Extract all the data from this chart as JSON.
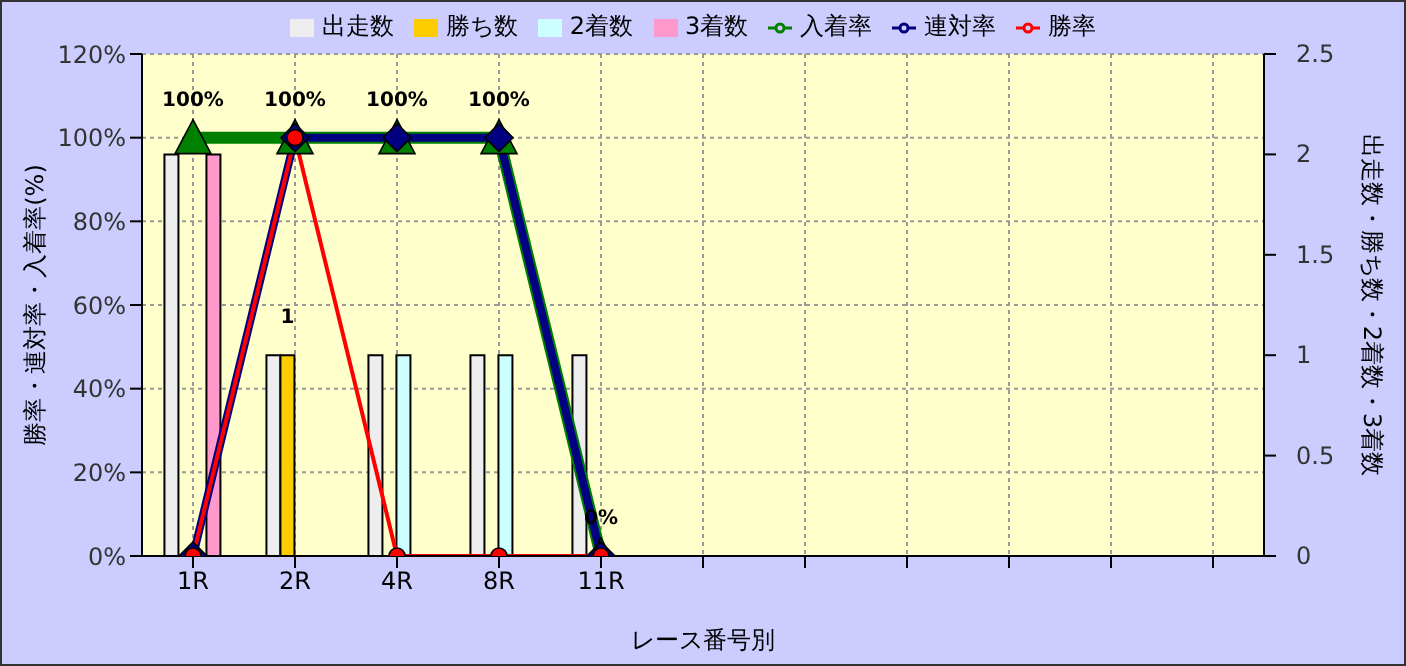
{
  "chart_data": {
    "type": "bar",
    "xlabel": "レース番号別",
    "ylabel": "勝率・連対率・入着率(%)",
    "y2label": "出走数・勝ち数・2着数・3着数",
    "categories": [
      "1R",
      "2R",
      "4R",
      "8R",
      "11R",
      null,
      null,
      null,
      null,
      null,
      null
    ],
    "series": [
      {
        "name": "出走数",
        "axis": "y2",
        "color": "#eeeeee",
        "values": [
          2,
          1,
          1,
          1,
          1,
          null,
          null,
          null,
          null,
          null,
          null
        ]
      },
      {
        "name": "勝ち数",
        "axis": "y2",
        "color": "#ffcc00",
        "values": [
          0,
          1,
          0,
          0,
          0,
          null,
          null,
          null,
          null,
          null,
          null
        ],
        "value_labels": [
          null,
          "1",
          null,
          null,
          null,
          null,
          null,
          null,
          null,
          null,
          null
        ]
      },
      {
        "name": "2着数",
        "axis": "y2",
        "color": "#ccffff",
        "values": [
          0,
          0,
          1,
          1,
          0,
          null,
          null,
          null,
          null,
          null,
          null
        ]
      },
      {
        "name": "3着数",
        "axis": "y2",
        "color": "#ff99cc",
        "values": [
          2,
          0,
          0,
          0,
          0,
          null,
          null,
          null,
          null,
          null,
          null
        ]
      },
      {
        "name": "入着率",
        "type": "line",
        "color": "#008000",
        "marker": "triangle",
        "values": [
          100,
          100,
          100,
          100,
          0,
          null,
          null,
          null,
          null,
          null,
          null
        ],
        "value_labels": [
          "100%",
          "100%",
          "100%",
          "100%",
          "0%",
          null,
          null,
          null,
          null,
          null,
          null
        ]
      },
      {
        "name": "連対率",
        "type": "line",
        "color": "#000080",
        "marker": "diamond",
        "values": [
          0,
          100,
          100,
          100,
          0,
          null,
          null,
          null,
          null,
          null,
          null
        ]
      },
      {
        "name": "勝率",
        "type": "line",
        "color": "#ff0000",
        "marker": "circle",
        "values": [
          0,
          100,
          0,
          0,
          0,
          null,
          null,
          null,
          null,
          null,
          null
        ]
      }
    ],
    "ylim": [
      0,
      120
    ],
    "yticks": [
      {
        "value": 0,
        "label": "0%"
      },
      {
        "value": 20,
        "label": "20%"
      },
      {
        "value": 40,
        "label": "40%"
      },
      {
        "value": 60,
        "label": "60%"
      },
      {
        "value": 80,
        "label": "80%"
      },
      {
        "value": 100,
        "label": "100%"
      },
      {
        "value": 120,
        "label": "120%"
      }
    ],
    "y2lim": [
      0,
      2.5
    ],
    "y2ticks": [
      0,
      0.5,
      1,
      1.5,
      2,
      2.5
    ],
    "grid": true,
    "legend": "top"
  }
}
